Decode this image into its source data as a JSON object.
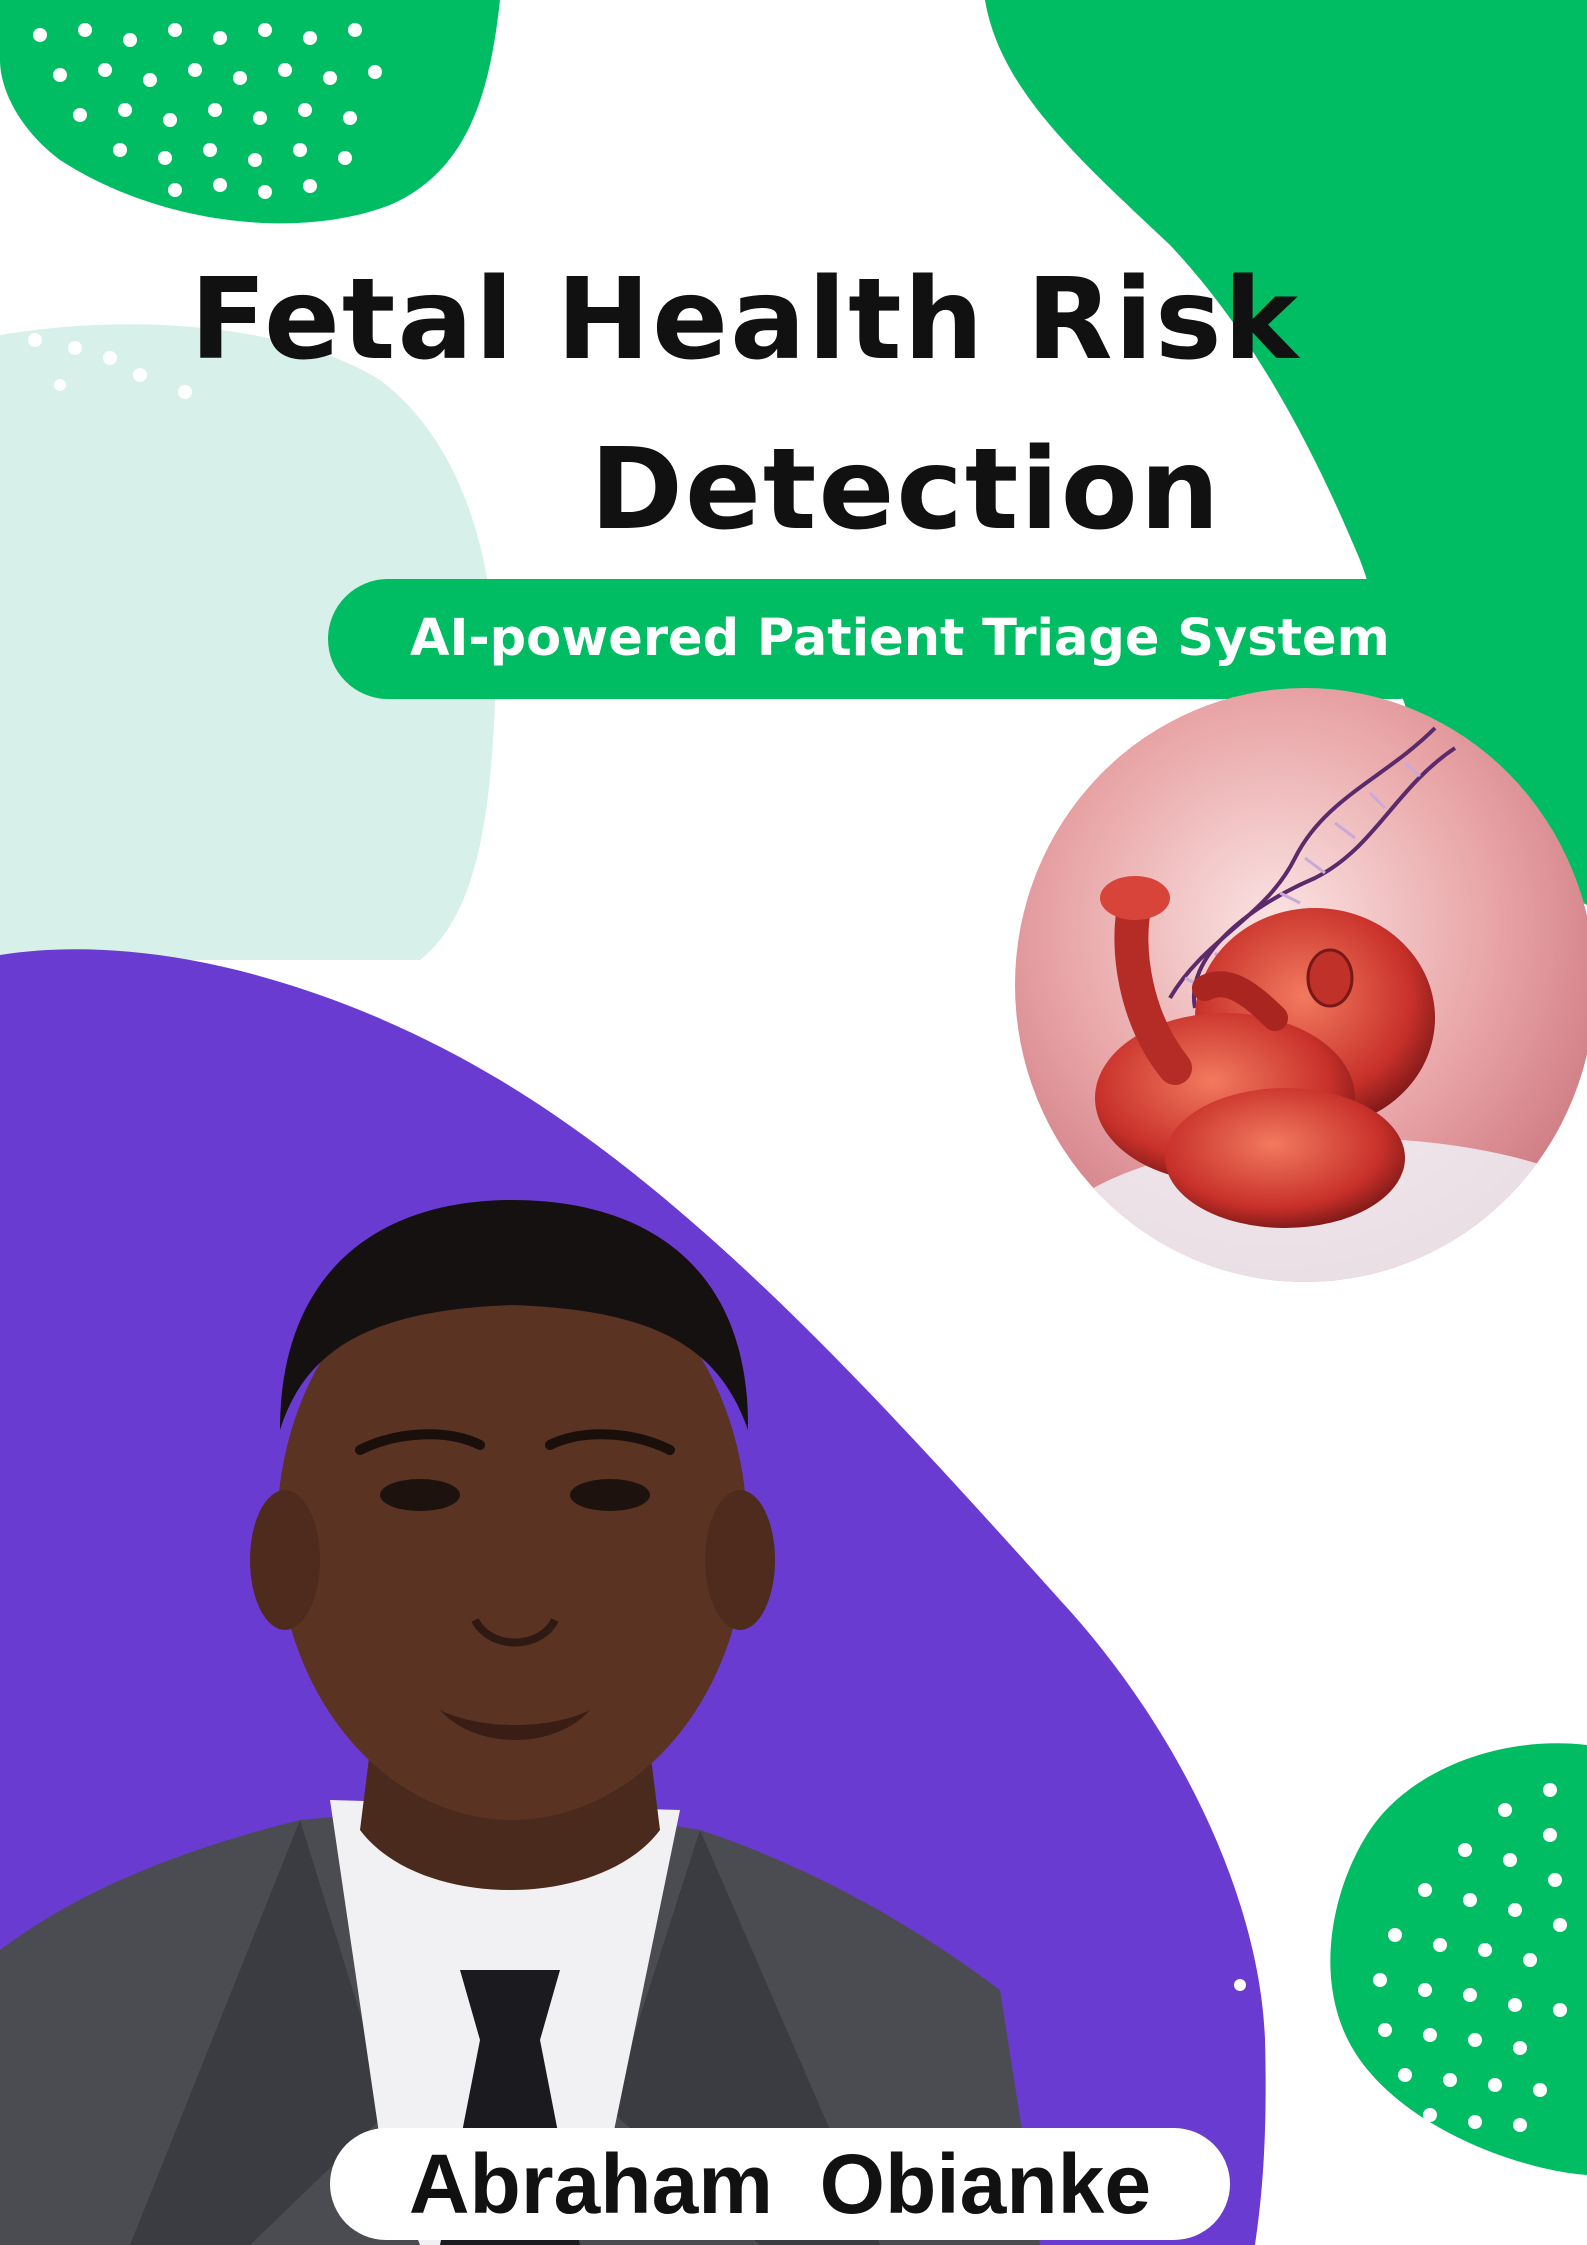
{
  "poster": {
    "title_line1": "Fetal Health Risk",
    "title_line2": "Detection",
    "subtitle": "AI-powered Patient Triage System",
    "author_name": "Abraham  Obianke"
  },
  "colors": {
    "green": "#00bd63",
    "mint": "#d8f0ea",
    "purple": "#6a3bd0",
    "white": "#ffffff",
    "text_dark": "#111111"
  },
  "icons": {
    "fetus_image": "fetus-dna-illustration",
    "portrait_image": "author-portrait"
  }
}
